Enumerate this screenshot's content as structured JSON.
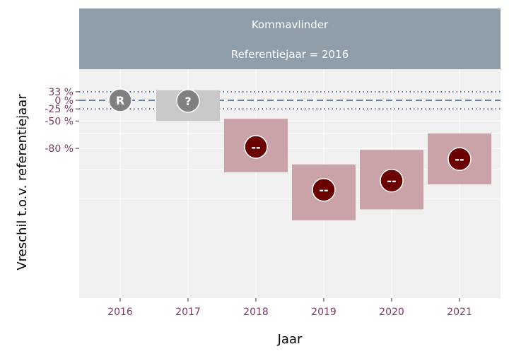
{
  "chart_data": {
    "type": "scatter",
    "panel_title": "Kommavlinder",
    "panel_subtitle": "Referentiejaar = 2016",
    "xlabel": "Jaar",
    "ylabel": "Vreschil t.o.v. referentiejaar",
    "categories": [
      "2016",
      "2017",
      "2018",
      "2019",
      "2020",
      "2021"
    ],
    "y_scale": "log ratio",
    "y_ticks": [
      {
        "label": "33 %",
        "value": 0.33
      },
      {
        "label": "0 %",
        "value": 0
      },
      {
        "label": "-25 %",
        "value": -0.25
      },
      {
        "label": "-50 %",
        "value": -0.5
      },
      {
        "label": "-80 %",
        "value": -0.8
      }
    ],
    "reference_lines": [
      {
        "value": 0.33,
        "style": "dotted"
      },
      {
        "value": 0,
        "style": "dashed"
      },
      {
        "value": -0.25,
        "style": "dotted"
      }
    ],
    "points": [
      {
        "year": "2016",
        "estimate": 0.0,
        "lower": null,
        "upper": null,
        "label": "R",
        "class": "reference"
      },
      {
        "year": "2017",
        "estimate": -0.02,
        "lower": -0.5,
        "upper": 0.4,
        "label": "?",
        "class": "uncertain"
      },
      {
        "year": "2018",
        "estimate": -0.79,
        "lower": -0.91,
        "upper": -0.46,
        "label": "--",
        "class": "strong decrease"
      },
      {
        "year": "2019",
        "estimate": -0.95,
        "lower": -0.982,
        "upper": -0.883,
        "label": "--",
        "class": "strong decrease"
      },
      {
        "year": "2020",
        "estimate": -0.932,
        "lower": -0.974,
        "upper": -0.81,
        "label": "--",
        "class": "strong decrease"
      },
      {
        "year": "2021",
        "estimate": -0.86,
        "lower": -0.94,
        "upper": -0.67,
        "label": "--",
        "class": "strong decrease"
      }
    ],
    "colors": {
      "strip": "#8f9ea8",
      "panel": "#f0f0f0",
      "reference_line": "#3c5a8c",
      "reference_marker": "#808080",
      "uncertain_box": "#c8c8c8",
      "uncertain_marker": "#808080",
      "decrease_box": "#c9a3a8",
      "decrease_marker": "#6b0000",
      "tick_text": "#7b3b62"
    },
    "grid": true
  }
}
